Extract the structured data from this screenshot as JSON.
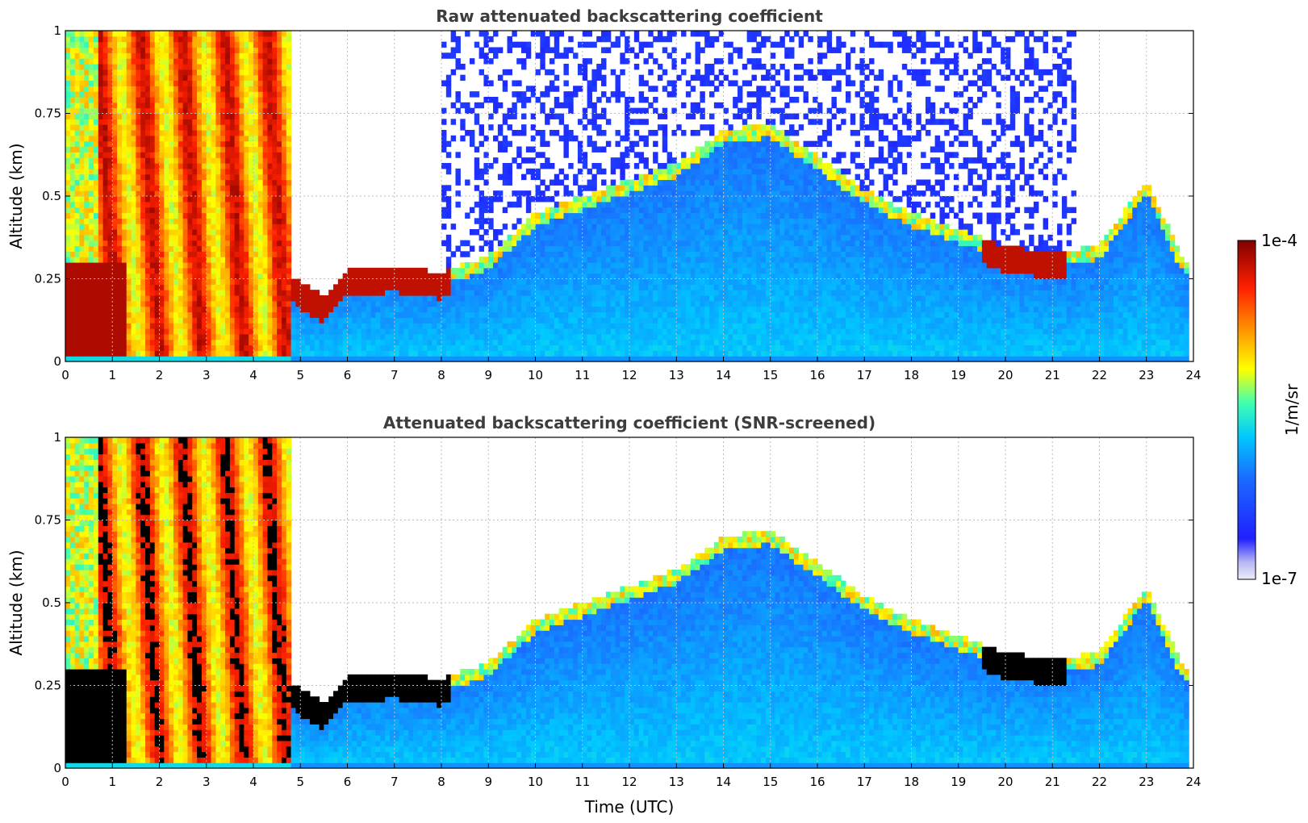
{
  "chart_data": [
    {
      "type": "heatmap",
      "title": "Raw attenuated backscattering coefficient",
      "xlabel": "",
      "ylabel": "Altitude (km)",
      "xlim": [
        0,
        24
      ],
      "ylim": [
        0,
        1
      ],
      "xticks": [
        "0",
        "1",
        "2",
        "3",
        "4",
        "5",
        "6",
        "7",
        "8",
        "9",
        "10",
        "11",
        "12",
        "13",
        "14",
        "15",
        "16",
        "17",
        "18",
        "19",
        "20",
        "21",
        "22",
        "23",
        "24"
      ],
      "yticks": [
        "0",
        "0.25",
        "0.5",
        "0.75",
        "1"
      ],
      "grid": true,
      "screened": false,
      "features": {
        "dense_layer": {
          "x": [
            0.0,
            4.8
          ],
          "y": [
            0,
            1
          ],
          "level": "high"
        },
        "boundary_layer_top_km": [
          [
            0.0,
            0.32
          ],
          [
            1.0,
            0.32
          ],
          [
            3.0,
            0.33
          ],
          [
            4.8,
            0.26
          ],
          [
            5.0,
            0.24
          ],
          [
            5.5,
            0.2
          ],
          [
            6.0,
            0.28
          ],
          [
            7.0,
            0.29
          ],
          [
            8.0,
            0.27
          ],
          [
            9.0,
            0.32
          ],
          [
            10.0,
            0.45
          ],
          [
            11.0,
            0.5
          ],
          [
            12.0,
            0.55
          ],
          [
            13.0,
            0.6
          ],
          [
            14.0,
            0.7
          ],
          [
            15.0,
            0.72
          ],
          [
            16.0,
            0.62
          ],
          [
            17.0,
            0.52
          ],
          [
            18.0,
            0.45
          ],
          [
            19.0,
            0.4
          ],
          [
            20.0,
            0.35
          ],
          [
            21.0,
            0.33
          ],
          [
            22.0,
            0.35
          ],
          [
            23.0,
            0.55
          ],
          [
            23.8,
            0.3
          ]
        ]
      }
    },
    {
      "type": "heatmap",
      "title": "Attenuated backscattering coefficient (SNR-screened)",
      "xlabel": "Time (UTC)",
      "ylabel": "Altitude (km)",
      "xlim": [
        0,
        24
      ],
      "ylim": [
        0,
        1
      ],
      "xticks": [
        "0",
        "1",
        "2",
        "3",
        "4",
        "5",
        "6",
        "7",
        "8",
        "9",
        "10",
        "11",
        "12",
        "13",
        "14",
        "15",
        "16",
        "17",
        "18",
        "19",
        "20",
        "21",
        "22",
        "23",
        "24"
      ],
      "yticks": [
        "0",
        "0.25",
        "0.5",
        "0.75",
        "1"
      ],
      "grid": true,
      "screened": true
    }
  ],
  "colorbar": {
    "label": "1/m/sr",
    "max_label": "1e-4",
    "min_label": "1e-7",
    "scale": "log",
    "range": [
      1e-07,
      0.0001
    ],
    "colormap": "jet",
    "colors": [
      "#ececf9",
      "#2020ff",
      "#1a6cff",
      "#00c8ff",
      "#40ffb0",
      "#ffff00",
      "#ff9000",
      "#ff2000",
      "#800000"
    ]
  }
}
